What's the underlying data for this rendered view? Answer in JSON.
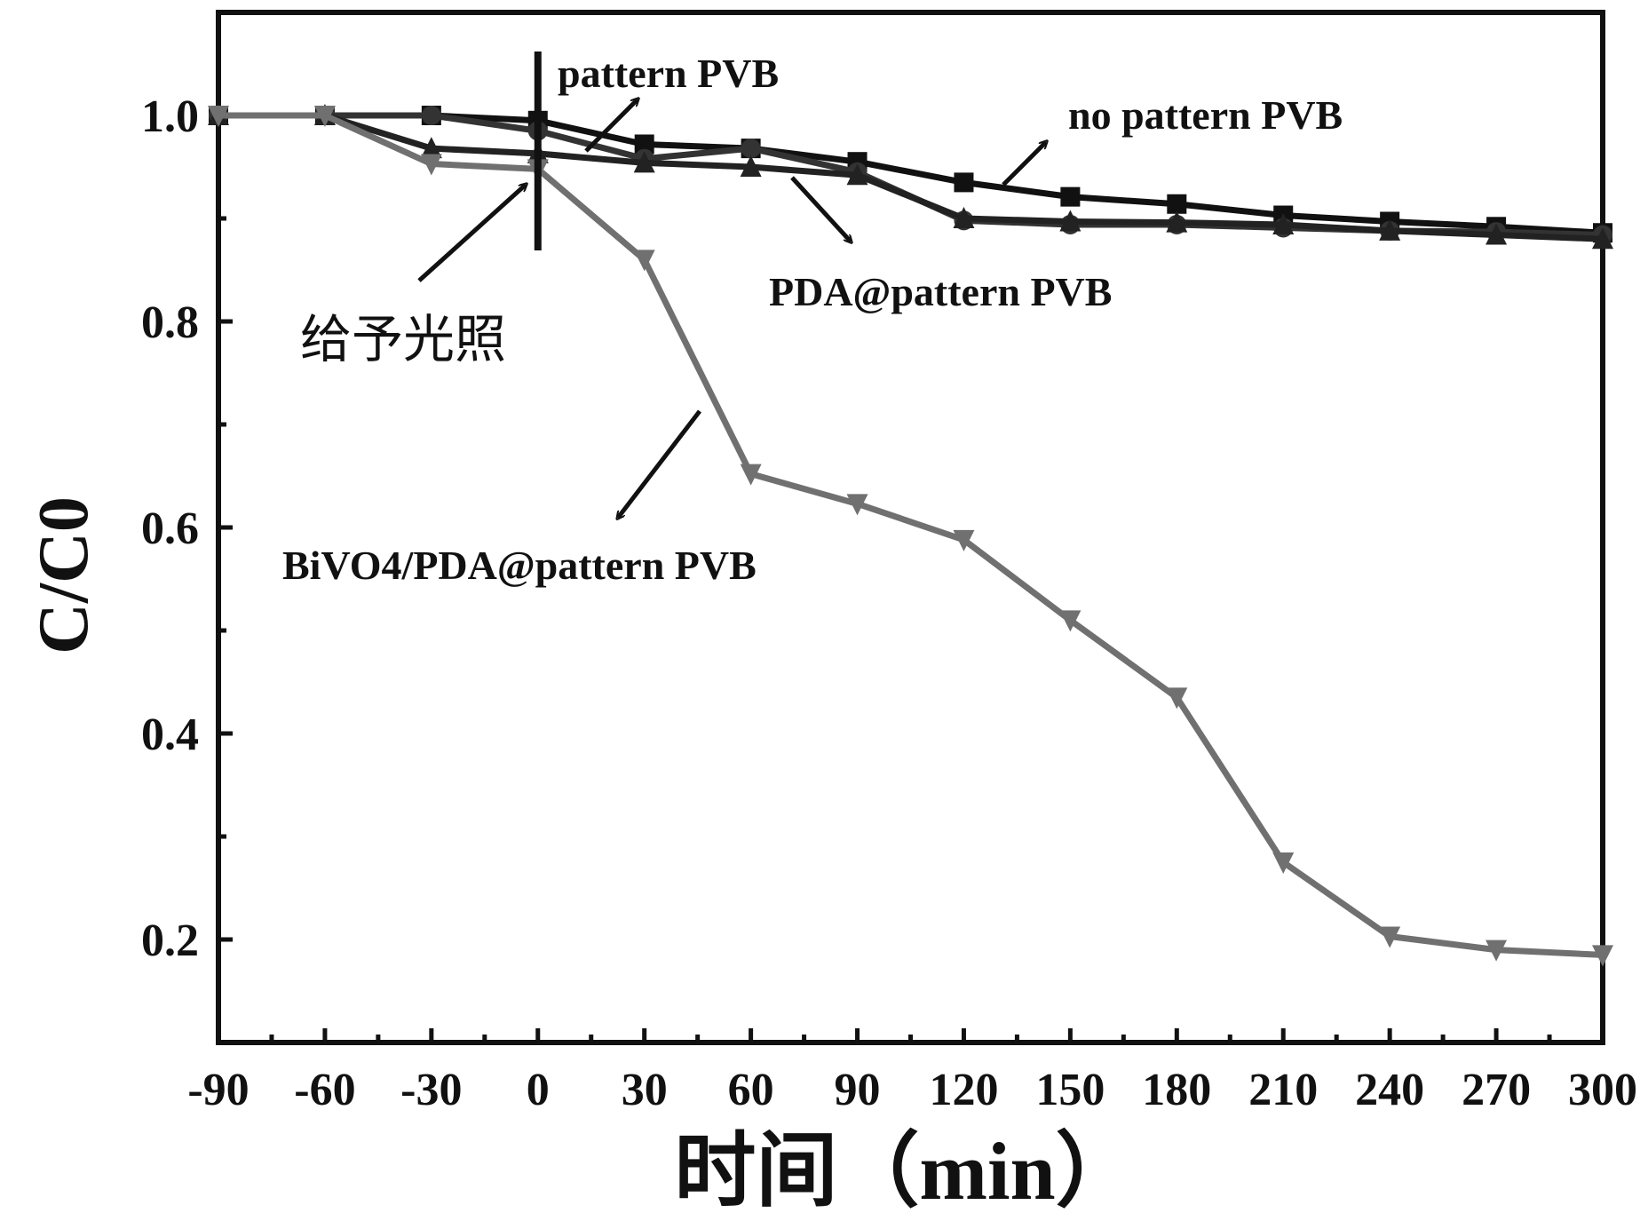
{
  "chart_data": {
    "type": "line",
    "xlabel": "时间（min）",
    "ylabel": "C/C0",
    "xlim": [
      -90,
      300
    ],
    "ylim": [
      0.1,
      1.1
    ],
    "x_ticks": [
      -90,
      -60,
      -30,
      0,
      30,
      60,
      90,
      120,
      150,
      180,
      210,
      240,
      270,
      300
    ],
    "y_ticks": [
      0.2,
      0.4,
      0.6,
      0.8,
      1.0
    ],
    "y_tick_labels": [
      "0.2",
      "0.4",
      "0.6",
      "0.8",
      "1.0"
    ],
    "grid": false,
    "light_on_label": "给予光照",
    "light_on_x": 0,
    "series": [
      {
        "name": "no pattern PVB",
        "color": "#111111",
        "marker": "square",
        "x": [
          -90,
          -60,
          -30,
          0,
          30,
          60,
          90,
          120,
          150,
          180,
          210,
          240,
          270,
          300
        ],
        "y": [
          1.0,
          1.0,
          1.0,
          0.995,
          0.972,
          0.968,
          0.955,
          0.935,
          0.921,
          0.914,
          0.903,
          0.897,
          0.892,
          0.886
        ]
      },
      {
        "name": "pattern PVB",
        "color": "#333333",
        "marker": "circle",
        "x": [
          -90,
          -60,
          -30,
          0,
          30,
          60,
          90,
          120,
          150,
          180,
          210,
          240,
          270,
          300
        ],
        "y": [
          1.0,
          1.0,
          1.0,
          0.985,
          0.958,
          0.968,
          0.945,
          0.898,
          0.894,
          0.894,
          0.891,
          0.888,
          0.887,
          0.884
        ]
      },
      {
        "name": "PDA@pattern PVB",
        "color": "#222222",
        "marker": "triangle-up",
        "x": [
          -90,
          -60,
          -30,
          0,
          30,
          60,
          90,
          120,
          150,
          180,
          210,
          240,
          270,
          300
        ],
        "y": [
          1.0,
          1.0,
          0.968,
          0.963,
          0.954,
          0.95,
          0.942,
          0.9,
          0.897,
          0.896,
          0.894,
          0.888,
          0.884,
          0.88
        ]
      },
      {
        "name": "BiVO4/PDA@pattern PVB",
        "color": "#707070",
        "marker": "triangle-down",
        "x": [
          -90,
          -60,
          -30,
          0,
          30,
          60,
          90,
          120,
          150,
          180,
          210,
          240,
          270,
          300
        ],
        "y": [
          1.0,
          1.0,
          0.953,
          0.948,
          0.86,
          0.652,
          0.623,
          0.588,
          0.51,
          0.435,
          0.275,
          0.203,
          0.19,
          0.185
        ]
      }
    ],
    "annotations": [
      {
        "text": "pattern PVB"
      },
      {
        "text": "no pattern PVB"
      },
      {
        "text": "PDA@pattern PVB"
      },
      {
        "text": "BiVO4/PDA@pattern PVB"
      }
    ]
  }
}
